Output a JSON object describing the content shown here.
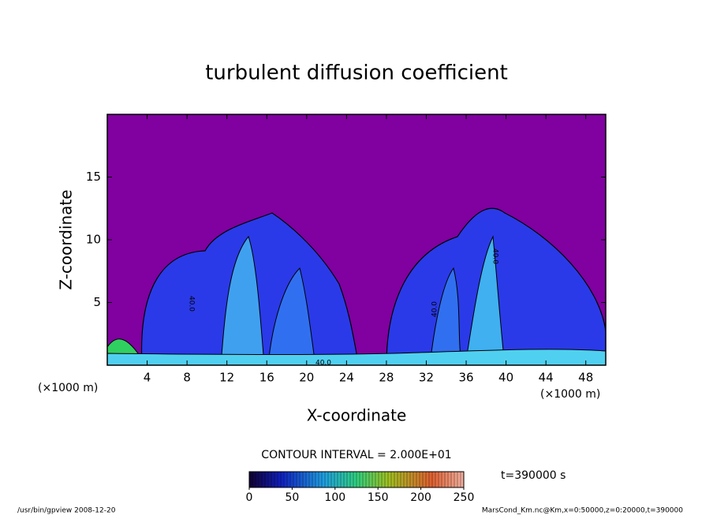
{
  "chart_data": {
    "type": "contour",
    "title": "turbulent diffusion coefficient",
    "xlabel": "X-coordinate",
    "ylabel": "Z-coordinate",
    "x_unit": "(×1000 m)",
    "xlim": [
      0,
      50
    ],
    "xticks": [
      4,
      8,
      12,
      16,
      20,
      24,
      28,
      32,
      36,
      40,
      44,
      48
    ],
    "ylim": [
      0,
      20
    ],
    "yticks": [
      5,
      10,
      15
    ],
    "background_color": "#8000a0",
    "contour_interval": "CONTOUR INTERVAL = 2.000E+01",
    "contour_labels": [
      "40.0",
      "40.0",
      "40.0",
      "40.0"
    ],
    "colorbar": {
      "lim": [
        0,
        250
      ],
      "ticks": [
        0,
        50,
        100,
        150,
        200,
        250
      ]
    },
    "time_label": "t=390000 s"
  },
  "footer": {
    "left": "/usr/bin/gpview  2008-12-20",
    "right": "MarsCond_Km.nc@Km,x=0:50000,z=0:20000,t=390000"
  }
}
